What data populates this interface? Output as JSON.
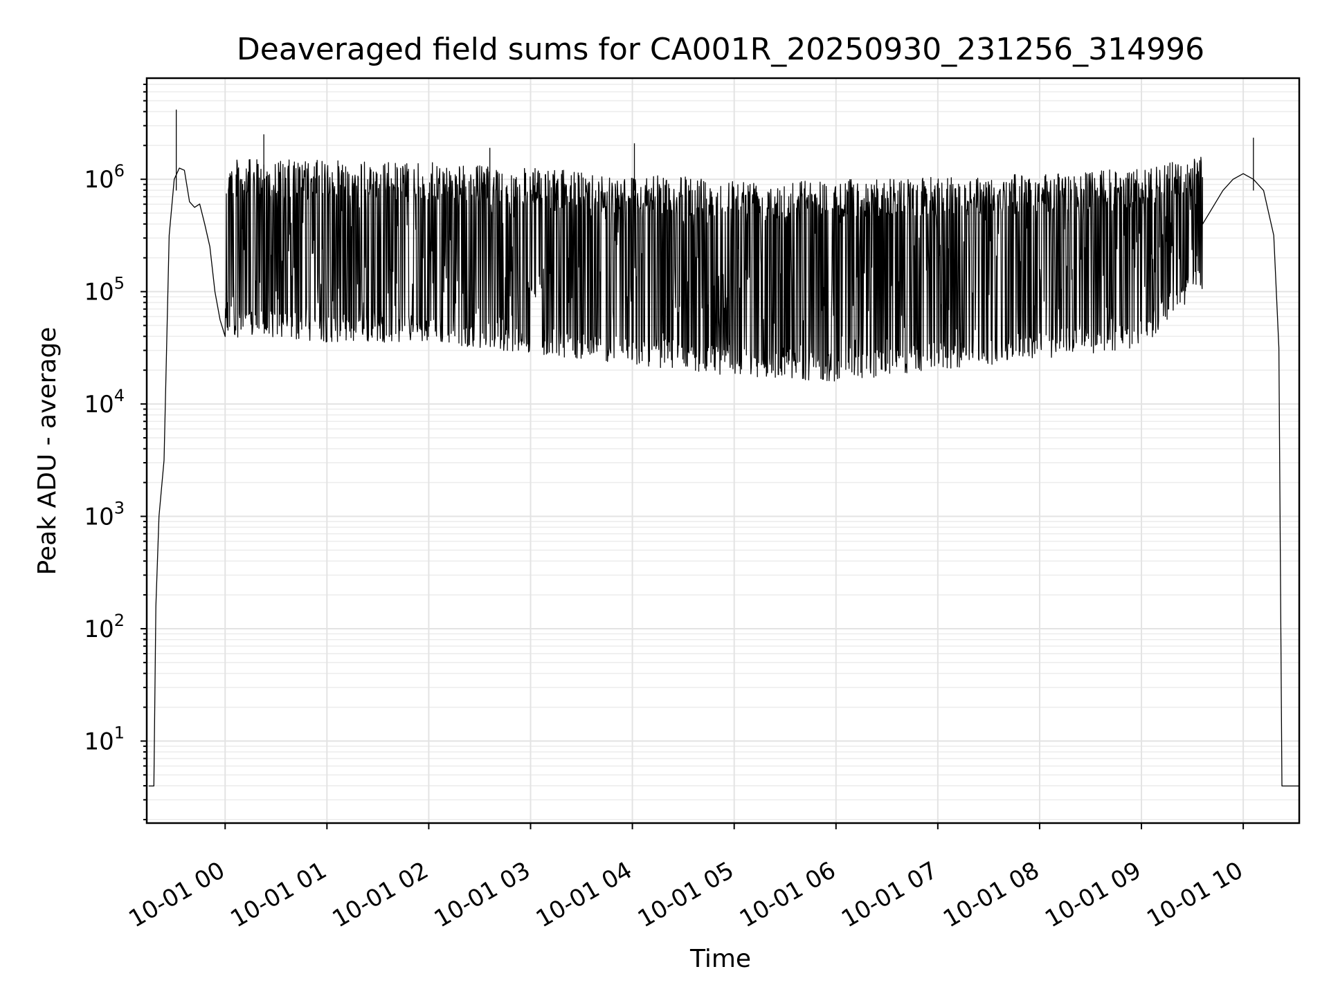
{
  "chart_data": {
    "type": "line",
    "title": "Deaveraged field sums for CA001R_20250930_231256_314996",
    "xlabel": "Time",
    "ylabel": "Peak ADU - average",
    "yscale": "log",
    "ylim_log10": [
      0.27,
      6.9
    ],
    "xlim_hours": [
      -0.77,
      10.55
    ],
    "grid": true,
    "x_tick_labels": [
      "10-01 00",
      "10-01 01",
      "10-01 02",
      "10-01 03",
      "10-01 04",
      "10-01 05",
      "10-01 06",
      "10-01 07",
      "10-01 08",
      "10-01 09",
      "10-01 10"
    ],
    "x_tick_hours": [
      0,
      1,
      2,
      3,
      4,
      5,
      6,
      7,
      8,
      9,
      10
    ],
    "y_tick_labels": [
      {
        "base": "10",
        "exp": "1"
      },
      {
        "base": "10",
        "exp": "2"
      },
      {
        "base": "10",
        "exp": "3"
      },
      {
        "base": "10",
        "exp": "4"
      },
      {
        "base": "10",
        "exp": "5"
      },
      {
        "base": "10",
        "exp": "6"
      }
    ],
    "y_tick_log10": [
      1,
      2,
      3,
      4,
      5,
      6
    ],
    "series": [
      {
        "name": "Peak ADU - average",
        "color": "#000000",
        "points": [
          [
            -0.75,
            0.6
          ],
          [
            -0.7,
            0.6
          ],
          [
            -0.68,
            2.2
          ],
          [
            -0.65,
            3.0
          ],
          [
            -0.6,
            3.5
          ],
          [
            -0.55,
            5.5
          ],
          [
            -0.5,
            6.0
          ],
          [
            -0.45,
            6.1
          ],
          [
            -0.4,
            6.08
          ],
          [
            -0.35,
            5.8
          ],
          [
            -0.3,
            5.75
          ],
          [
            -0.25,
            5.78
          ],
          [
            -0.2,
            5.6
          ],
          [
            -0.15,
            5.4
          ],
          [
            -0.1,
            5.0
          ],
          [
            -0.05,
            4.75
          ],
          [
            0.0,
            4.6
          ],
          [
            9.6,
            5.6
          ],
          [
            9.7,
            5.75
          ],
          [
            9.8,
            5.9
          ],
          [
            9.9,
            6.0
          ],
          [
            10.0,
            6.05
          ],
          [
            10.1,
            6.0
          ],
          [
            10.2,
            5.9
          ],
          [
            10.3,
            5.5
          ],
          [
            10.35,
            4.5
          ],
          [
            10.38,
            0.6
          ],
          [
            10.55,
            0.6
          ]
        ],
        "band": {
          "hours": [
            0,
            1,
            2,
            3,
            4,
            5,
            6,
            7,
            8,
            9,
            9.6
          ],
          "upper_log10": [
            6.18,
            6.17,
            6.15,
            6.1,
            6.04,
            6.01,
            6.0,
            6.02,
            6.05,
            6.1,
            6.2
          ],
          "lower_log10": [
            4.6,
            4.55,
            4.55,
            4.45,
            4.35,
            4.25,
            4.2,
            4.3,
            4.4,
            4.5,
            5.0
          ]
        },
        "spikes": [
          {
            "x": -0.48,
            "y": 6.62
          },
          {
            "x": 0.38,
            "y": 6.4
          },
          {
            "x": 2.6,
            "y": 6.28
          },
          {
            "x": 4.02,
            "y": 6.32
          },
          {
            "x": 10.1,
            "y": 6.37
          }
        ]
      }
    ]
  }
}
